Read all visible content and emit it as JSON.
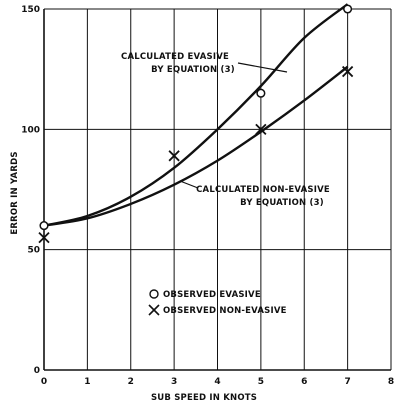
{
  "chart_data": {
    "type": "scatter",
    "title": "",
    "xlabel": "SUB SPEED IN KNOTS",
    "ylabel": "ERROR IN YARDS",
    "xlim": [
      0,
      8
    ],
    "ylim": [
      0,
      150
    ],
    "x_ticks": [
      "0",
      "1",
      "2",
      "3",
      "4",
      "5",
      "6",
      "7",
      "8"
    ],
    "y_ticks": [
      "0",
      "50",
      "100",
      "150"
    ],
    "grid": true,
    "series": [
      {
        "kind": "curve",
        "x": [
          0,
          1,
          2,
          3,
          4,
          5,
          6,
          7
        ],
        "y": [
          60,
          64,
          72,
          84,
          100,
          118,
          138,
          152
        ]
      },
      {
        "kind": "curve",
        "x": [
          0,
          1,
          2,
          3,
          4,
          5,
          6,
          7
        ],
        "y": [
          60,
          63,
          69,
          77,
          87,
          99,
          112,
          126
        ]
      },
      {
        "name": "OBSERVED EVASIVE",
        "kind": "points",
        "marker": "circle",
        "x": [
          0,
          5,
          7
        ],
        "y": [
          60,
          115,
          150
        ]
      },
      {
        "name": "OBSERVED NON-EVASIVE",
        "kind": "points",
        "marker": "x",
        "x": [
          0,
          3,
          5,
          7
        ],
        "y": [
          55,
          89,
          100,
          124
        ]
      }
    ],
    "annotations": [
      {
        "lines": [
          "CALCULATED EVASIVE",
          "BY EQUATION (3)"
        ]
      },
      {
        "lines": [
          "CALCULATED NON-EVASIVE",
          "BY EQUATION (3)"
        ]
      }
    ],
    "legend_position": "lower-center"
  }
}
